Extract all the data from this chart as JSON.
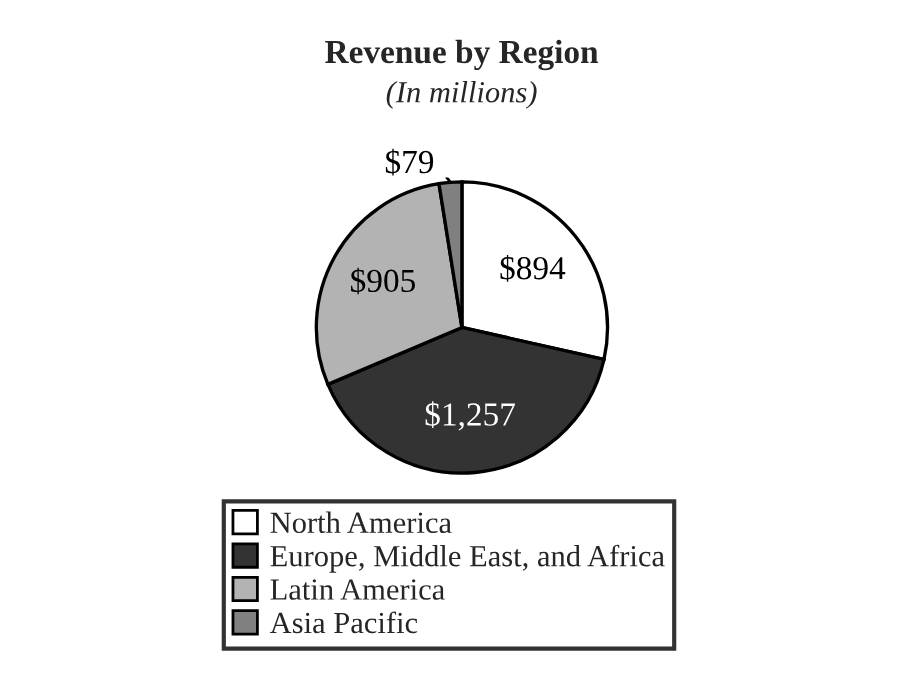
{
  "chart_data": {
    "type": "pie",
    "title": "Revenue by Region",
    "subtitle": "(In millions)",
    "categories": [
      "North America",
      "Europe, Middle East, and Africa",
      "Latin America",
      "Asia Pacific"
    ],
    "values": [
      894,
      1257,
      905,
      79
    ],
    "value_labels": [
      "$894",
      "$1,257",
      "$905",
      "$79"
    ],
    "colors": [
      "#ffffff",
      "#333333",
      "#b3b3b3",
      "#808080"
    ],
    "legend": "bottom"
  }
}
